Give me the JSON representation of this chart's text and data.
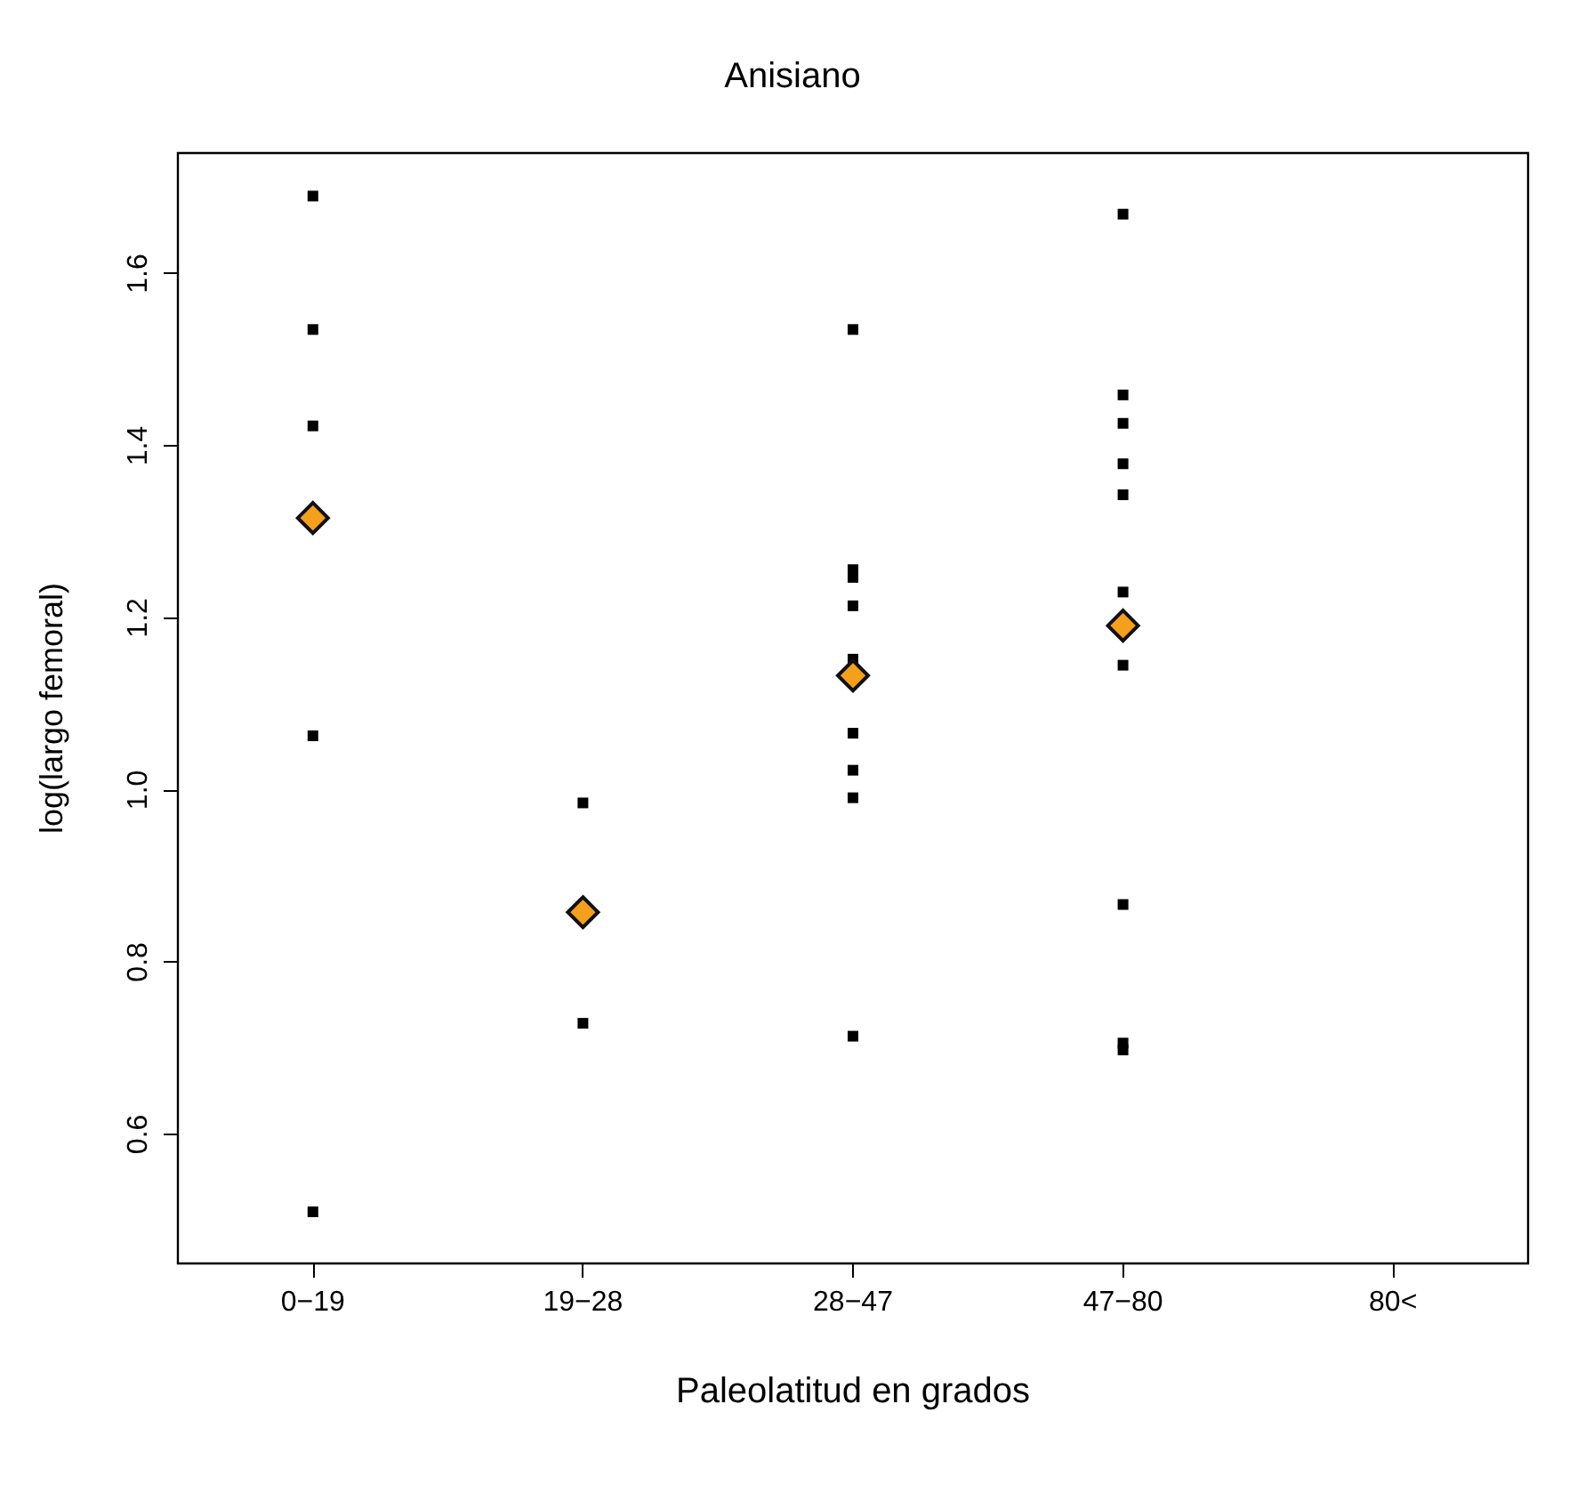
{
  "chart_data": {
    "type": "scatter",
    "title": "Anisiano",
    "xlabel": "Paleolatitud en grados",
    "ylabel": "log(largo femoral)",
    "categories": [
      "0−19",
      "19−28",
      "28−47",
      "47−80",
      "80<"
    ],
    "ylim": [
      0.45,
      1.74
    ],
    "yticks": [
      0.6,
      0.8,
      {
        "value": 1,
        "label": "1.0"
      },
      1.2,
      1.4,
      1.6
    ],
    "grid": false,
    "series": [
      {
        "color": "#000000",
        "marker": "square",
        "x": [
          "0−19",
          "0−19",
          "0−19",
          "0−19",
          "0−19",
          "19−28",
          "19−28",
          "28−47",
          "28−47",
          "28−47",
          "28−47",
          "28−47",
          "28−47",
          "28−47",
          "28−47",
          "28−47",
          "47−80",
          "47−80",
          "47−80",
          "47−80",
          "47−80",
          "47−80",
          "47−80",
          "47−80",
          "47−80",
          "47−80"
        ],
        "values": [
          1.69,
          1.535,
          1.423,
          1.063,
          0.51,
          0.985,
          0.729,
          1.535,
          1.256,
          1.247,
          1.214,
          1.152,
          1.066,
          1.023,
          0.991,
          0.714,
          1.669,
          1.459,
          1.426,
          1.379,
          1.343,
          1.23,
          1.145,
          0.867,
          0.706,
          0.698
        ]
      },
      {
        "color": "#f5a01a",
        "marker": "diamond",
        "x": [
          "0−19",
          "19−28",
          "28−47",
          "47−80"
        ],
        "values": [
          1.316,
          0.858,
          1.133,
          1.191
        ]
      }
    ]
  }
}
